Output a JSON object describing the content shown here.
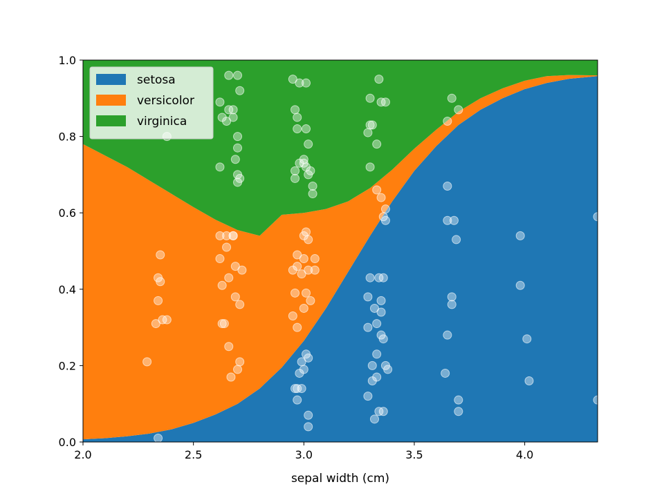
{
  "chart_data": {
    "type": "area",
    "subtype": "stacked-probability",
    "title": "",
    "xlabel": "sepal width (cm)",
    "ylabel": "",
    "xlim": [
      2.0,
      4.33
    ],
    "ylim": [
      0.0,
      1.0
    ],
    "xticks": [
      "2.0",
      "2.5",
      "3.0",
      "3.5",
      "4.0"
    ],
    "yticks": [
      "0.0",
      "0.2",
      "0.4",
      "0.6",
      "0.8",
      "1.0"
    ],
    "grid": false,
    "legend_position": "top-left",
    "x": [
      2.0,
      2.1,
      2.2,
      2.3,
      2.4,
      2.5,
      2.6,
      2.7,
      2.8,
      2.9,
      3.0,
      3.1,
      3.2,
      3.3,
      3.4,
      3.5,
      3.6,
      3.7,
      3.8,
      3.9,
      4.0,
      4.1,
      4.2,
      4.33
    ],
    "series": [
      {
        "name": "setosa",
        "color": "#1f77b4",
        "values": [
          0.007,
          0.01,
          0.015,
          0.022,
          0.033,
          0.05,
          0.072,
          0.1,
          0.14,
          0.195,
          0.265,
          0.35,
          0.445,
          0.54,
          0.63,
          0.71,
          0.775,
          0.83,
          0.87,
          0.9,
          0.924,
          0.94,
          0.951,
          0.958
        ]
      },
      {
        "name": "versicolor",
        "color": "#ff7f0e",
        "values": [
          0.773,
          0.74,
          0.705,
          0.663,
          0.617,
          0.565,
          0.51,
          0.455,
          0.4,
          0.4,
          0.335,
          0.26,
          0.185,
          0.125,
          0.083,
          0.058,
          0.043,
          0.035,
          0.03,
          0.026,
          0.022,
          0.018,
          0.01,
          0.002
        ]
      },
      {
        "name": "virginica",
        "color": "#2ca02c",
        "values": [
          0.22,
          0.25,
          0.28,
          0.315,
          0.35,
          0.385,
          0.418,
          0.445,
          0.46,
          0.405,
          0.4,
          0.39,
          0.37,
          0.335,
          0.287,
          0.232,
          0.182,
          0.135,
          0.1,
          0.074,
          0.054,
          0.042,
          0.039,
          0.04
        ]
      }
    ],
    "scatter": {
      "color": "#ffffff",
      "opacity": 0.4,
      "points": [
        [
          2.34,
          0.01
        ],
        [
          2.29,
          0.21
        ],
        [
          2.33,
          0.31
        ],
        [
          2.34,
          0.37
        ],
        [
          2.35,
          0.42
        ],
        [
          2.34,
          0.43
        ],
        [
          2.35,
          0.49
        ],
        [
          2.36,
          0.32
        ],
        [
          2.38,
          0.32
        ],
        [
          2.38,
          0.8
        ],
        [
          2.62,
          0.72
        ],
        [
          2.62,
          0.89
        ],
        [
          2.63,
          0.85
        ],
        [
          2.65,
          0.84
        ],
        [
          2.66,
          0.87
        ],
        [
          2.66,
          0.96
        ],
        [
          2.68,
          0.85
        ],
        [
          2.68,
          0.87
        ],
        [
          2.69,
          0.74
        ],
        [
          2.7,
          0.68
        ],
        [
          2.7,
          0.7
        ],
        [
          2.7,
          0.77
        ],
        [
          2.7,
          0.8
        ],
        [
          2.7,
          0.96
        ],
        [
          2.71,
          0.69
        ],
        [
          2.71,
          0.92
        ],
        [
          2.62,
          0.48
        ],
        [
          2.62,
          0.54
        ],
        [
          2.63,
          0.31
        ],
        [
          2.63,
          0.41
        ],
        [
          2.64,
          0.31
        ],
        [
          2.65,
          0.54
        ],
        [
          2.65,
          0.51
        ],
        [
          2.66,
          0.25
        ],
        [
          2.66,
          0.43
        ],
        [
          2.67,
          0.17
        ],
        [
          2.68,
          0.54
        ],
        [
          2.68,
          0.54
        ],
        [
          2.69,
          0.46
        ],
        [
          2.69,
          0.38
        ],
        [
          2.7,
          0.19
        ],
        [
          2.71,
          0.21
        ],
        [
          2.71,
          0.36
        ],
        [
          2.72,
          0.45
        ],
        [
          2.95,
          0.95
        ],
        [
          2.96,
          0.87
        ],
        [
          2.97,
          0.85
        ],
        [
          2.97,
          0.82
        ],
        [
          2.98,
          0.73
        ],
        [
          2.98,
          0.94
        ],
        [
          3.01,
          0.94
        ],
        [
          3.01,
          0.82
        ],
        [
          3.02,
          0.78
        ],
        [
          2.96,
          0.71
        ],
        [
          2.96,
          0.69
        ],
        [
          3.0,
          0.74
        ],
        [
          3.0,
          0.73
        ],
        [
          3.01,
          0.72
        ],
        [
          3.02,
          0.7
        ],
        [
          3.03,
          0.71
        ],
        [
          3.04,
          0.67
        ],
        [
          3.04,
          0.65
        ],
        [
          2.95,
          0.45
        ],
        [
          2.95,
          0.33
        ],
        [
          2.96,
          0.39
        ],
        [
          2.97,
          0.46
        ],
        [
          2.97,
          0.49
        ],
        [
          2.97,
          0.3
        ],
        [
          2.99,
          0.44
        ],
        [
          3.0,
          0.35
        ],
        [
          3.0,
          0.48
        ],
        [
          3.0,
          0.54
        ],
        [
          3.01,
          0.55
        ],
        [
          3.01,
          0.39
        ],
        [
          3.02,
          0.53
        ],
        [
          3.02,
          0.45
        ],
        [
          3.03,
          0.37
        ],
        [
          3.05,
          0.48
        ],
        [
          3.05,
          0.45
        ],
        [
          2.96,
          0.14
        ],
        [
          2.97,
          0.14
        ],
        [
          2.97,
          0.11
        ],
        [
          2.98,
          0.18
        ],
        [
          2.99,
          0.21
        ],
        [
          2.99,
          0.14
        ],
        [
          3.0,
          0.19
        ],
        [
          3.01,
          0.23
        ],
        [
          3.02,
          0.22
        ],
        [
          3.02,
          0.07
        ],
        [
          3.02,
          0.04
        ],
        [
          3.29,
          0.12
        ],
        [
          3.29,
          0.3
        ],
        [
          3.29,
          0.38
        ],
        [
          3.3,
          0.43
        ],
        [
          3.31,
          0.2
        ],
        [
          3.31,
          0.16
        ],
        [
          3.32,
          0.06
        ],
        [
          3.32,
          0.35
        ],
        [
          3.33,
          0.23
        ],
        [
          3.33,
          0.31
        ],
        [
          3.33,
          0.17
        ],
        [
          3.34,
          0.08
        ],
        [
          3.34,
          0.43
        ],
        [
          3.35,
          0.37
        ],
        [
          3.35,
          0.34
        ],
        [
          3.35,
          0.28
        ],
        [
          3.36,
          0.43
        ],
        [
          3.36,
          0.08
        ],
        [
          3.36,
          0.27
        ],
        [
          3.37,
          0.2
        ],
        [
          3.38,
          0.19
        ],
        [
          3.29,
          0.81
        ],
        [
          3.3,
          0.83
        ],
        [
          3.3,
          0.9
        ],
        [
          3.3,
          0.72
        ],
        [
          3.31,
          0.83
        ],
        [
          3.33,
          0.78
        ],
        [
          3.34,
          0.95
        ],
        [
          3.35,
          0.89
        ],
        [
          3.37,
          0.89
        ],
        [
          3.33,
          0.66
        ],
        [
          3.35,
          0.64
        ],
        [
          3.36,
          0.59
        ],
        [
          3.37,
          0.61
        ],
        [
          3.37,
          0.58
        ],
        [
          3.65,
          0.67
        ],
        [
          3.65,
          0.58
        ],
        [
          3.68,
          0.58
        ],
        [
          3.69,
          0.53
        ],
        [
          3.67,
          0.9
        ],
        [
          3.65,
          0.84
        ],
        [
          3.7,
          0.87
        ],
        [
          3.67,
          0.36
        ],
        [
          3.67,
          0.38
        ],
        [
          3.65,
          0.28
        ],
        [
          3.64,
          0.18
        ],
        [
          3.7,
          0.11
        ],
        [
          3.7,
          0.08
        ],
        [
          3.98,
          0.54
        ],
        [
          3.98,
          0.41
        ],
        [
          4.01,
          0.27
        ],
        [
          4.02,
          0.16
        ],
        [
          4.33,
          0.59
        ],
        [
          4.33,
          0.11
        ]
      ]
    }
  }
}
